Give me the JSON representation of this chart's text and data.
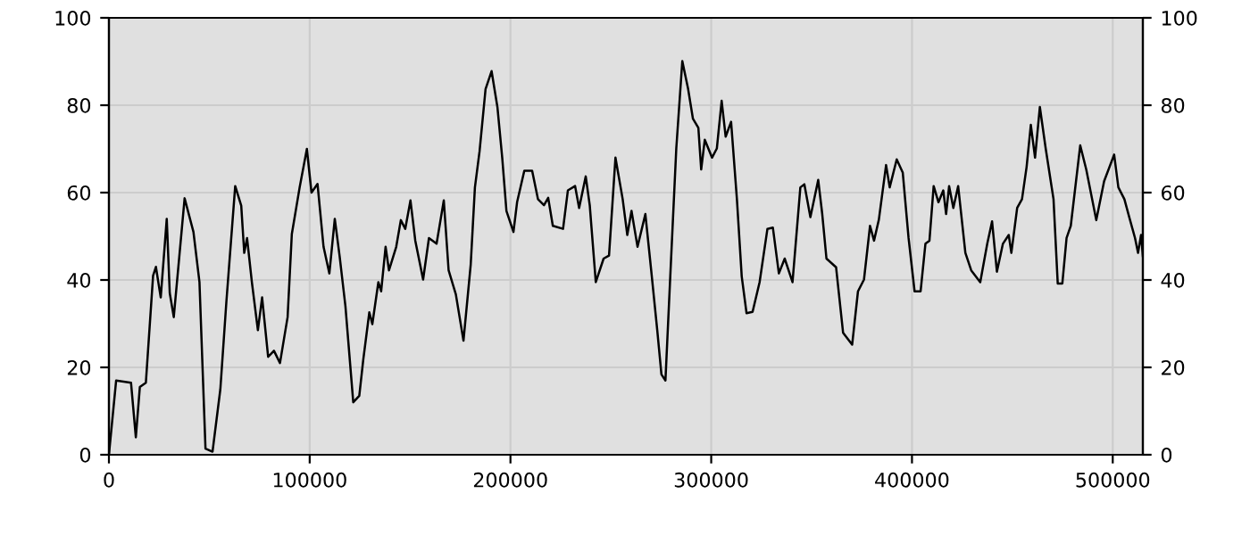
{
  "chart_data": {
    "type": "line",
    "xlim": [
      0,
      515000
    ],
    "xticks": [
      0,
      100000,
      200000,
      300000,
      400000,
      500000
    ],
    "ylim": [
      0,
      100
    ],
    "yticks": [
      0,
      20,
      40,
      60,
      80,
      100
    ],
    "y2lim": [
      0,
      100
    ],
    "y2ticks": [
      0,
      20,
      40,
      60,
      80,
      100
    ],
    "grid": true,
    "marker": "none",
    "line_style": "solid",
    "series": [
      {
        "color": "#000000",
        "x": [
          0,
          3600,
          11000,
          13400,
          15400,
          18400,
          22000,
          23400,
          25800,
          28800,
          30300,
          32300,
          37700,
          42100,
          45100,
          48100,
          51600,
          55500,
          58500,
          62900,
          65900,
          67400,
          68800,
          71200,
          74200,
          76300,
          79300,
          82200,
          85200,
          89000,
          91100,
          95000,
          98600,
          100900,
          103900,
          106900,
          109800,
          112500,
          114900,
          117800,
          121700,
          124700,
          126700,
          129700,
          131200,
          134200,
          135600,
          137800,
          139500,
          143100,
          145400,
          147600,
          150200,
          152600,
          156500,
          159400,
          163200,
          166800,
          169200,
          172800,
          176600,
          180200,
          182300,
          184600,
          187600,
          190600,
          193500,
          195900,
          198000,
          201500,
          203300,
          206900,
          210800,
          213700,
          216700,
          218800,
          221100,
          226200,
          228600,
          232200,
          234200,
          237500,
          239500,
          242500,
          246400,
          249100,
          252300,
          255900,
          258200,
          260300,
          263300,
          267200,
          270100,
          273100,
          275200,
          277200,
          279600,
          282600,
          285600,
          288500,
          290900,
          293600,
          295000,
          296800,
          300400,
          302800,
          305200,
          307200,
          309900,
          312800,
          315200,
          317600,
          320600,
          324100,
          328000,
          330700,
          333700,
          336600,
          340500,
          344400,
          346400,
          349400,
          353300,
          355300,
          357400,
          362200,
          365700,
          370200,
          373100,
          376100,
          379100,
          381100,
          383500,
          387100,
          388900,
          392400,
          395400,
          398300,
          401300,
          404300,
          406700,
          408700,
          410800,
          413200,
          415600,
          417000,
          418500,
          420600,
          423000,
          426600,
          429500,
          434000,
          437500,
          439900,
          442300,
          445300,
          448200,
          449500,
          452400,
          454800,
          457100,
          459200,
          461300,
          463700,
          466600,
          470500,
          472600,
          474900,
          477000,
          479100,
          483800,
          486800,
          491800,
          495700,
          500700,
          502800,
          505800,
          508200,
          511100,
          512600,
          514100,
          515000
        ],
        "values": [
          0,
          17,
          16.5,
          4,
          15.5,
          16.5,
          41,
          43,
          36,
          54,
          37,
          31.5,
          58.7,
          51,
          39.5,
          1.4,
          0.7,
          15,
          35,
          61.5,
          57,
          46.2,
          49.6,
          39.5,
          28.5,
          36,
          22.4,
          23.8,
          21,
          31.5,
          50.5,
          61.2,
          70,
          60,
          62,
          47.6,
          41.5,
          54,
          45.5,
          34,
          12,
          13.5,
          21.8,
          32.6,
          29.9,
          39.5,
          37.4,
          47.6,
          42.2,
          47.6,
          53.7,
          51.7,
          58.2,
          49,
          40.1,
          49.6,
          48.3,
          58.2,
          42.2,
          36.7,
          26.1,
          43.5,
          61.2,
          69.4,
          83.7,
          87.8,
          79.6,
          68,
          55.8,
          51,
          57.8,
          65,
          65,
          58.5,
          57.1,
          58.8,
          52.4,
          51.7,
          60.5,
          61.5,
          56.5,
          63.7,
          57.1,
          39.5,
          44.9,
          45.6,
          68,
          58.5,
          50.3,
          55.8,
          47.6,
          55.1,
          42.2,
          28.6,
          18.4,
          17,
          40.8,
          70.1,
          90.1,
          83.7,
          76.9,
          74.8,
          65.3,
          72.1,
          68,
          70.1,
          81,
          72.8,
          76.2,
          58.5,
          40.8,
          32.4,
          32.7,
          39.5,
          51.7,
          52,
          41.5,
          44.9,
          39.5,
          61.2,
          61.9,
          54.4,
          62.9,
          55.1,
          44.9,
          42.9,
          27.9,
          25.2,
          37.4,
          40.1,
          52.4,
          49,
          53.8,
          66.3,
          61.2,
          67.6,
          64.6,
          49.6,
          37.4,
          37.4,
          48.3,
          49,
          61.5,
          57.8,
          60.5,
          55.1,
          61.5,
          56.5,
          61.5,
          46.2,
          42.2,
          39.5,
          48.3,
          53.4,
          41.9,
          48.3,
          50.3,
          46.2,
          56.5,
          58.5,
          65.9,
          75.5,
          68,
          79.6,
          70.1,
          58.5,
          39.2,
          39.2,
          49.6,
          52.4,
          70.8,
          65.3,
          53.7,
          62.6,
          68.7,
          61.2,
          58.5,
          54.4,
          49.6,
          46.2,
          50.3,
          45.5
        ]
      }
    ]
  }
}
